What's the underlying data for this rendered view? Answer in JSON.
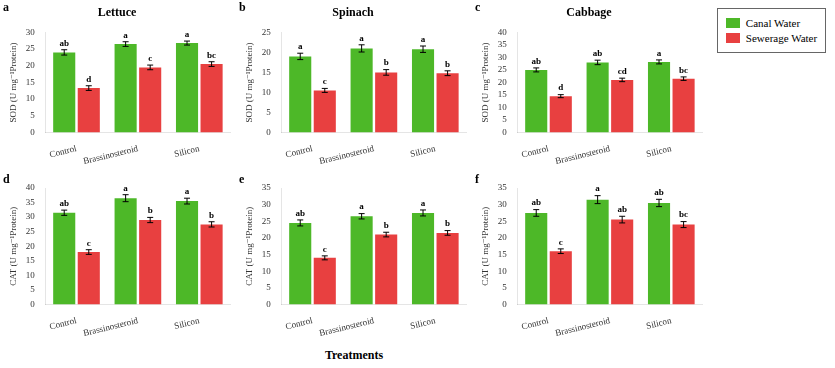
{
  "xlabel": "Treatments",
  "legend": "upper right",
  "chart_data": [
    {
      "type": "bar",
      "title": "Lettuce",
      "panel_label": "a",
      "ylabel": "SOD (U mg⁻¹Protein)",
      "categories": [
        "Control",
        "Brassinosteroid",
        "Silicon"
      ],
      "ylim": [
        0,
        30
      ],
      "yticks": [
        0,
        5,
        10,
        15,
        20,
        25,
        30
      ],
      "grid": false,
      "series": [
        {
          "name": "Canal Water",
          "color": "#4db828",
          "values": [
            24.0,
            26.5,
            26.8
          ],
          "errors": [
            0.8,
            0.7,
            0.6
          ],
          "letter_labels": [
            "ab",
            "a",
            "a"
          ]
        },
        {
          "name": "Sewerage Water",
          "color": "#e84040",
          "values": [
            13.3,
            19.5,
            20.5
          ],
          "errors": [
            0.7,
            0.7,
            0.7
          ],
          "letter_labels": [
            "d",
            "c",
            "bc"
          ]
        }
      ]
    },
    {
      "type": "bar",
      "title": "Spinach",
      "panel_label": "b",
      "ylabel": "SOD (U mg⁻¹Protein)",
      "categories": [
        "Control",
        "Brassinosteroid",
        "Silicon"
      ],
      "ylim": [
        0,
        25
      ],
      "yticks": [
        0,
        5,
        10,
        15,
        20,
        25
      ],
      "grid": false,
      "series": [
        {
          "name": "Canal Water",
          "color": "#4db828",
          "values": [
            19.0,
            21.0,
            20.8
          ],
          "errors": [
            0.8,
            0.9,
            0.8
          ],
          "letter_labels": [
            "a",
            "a",
            "a"
          ]
        },
        {
          "name": "Sewerage Water",
          "color": "#e84040",
          "values": [
            10.5,
            15.0,
            14.8
          ],
          "errors": [
            0.5,
            0.7,
            0.6
          ],
          "letter_labels": [
            "c",
            "b",
            "b"
          ]
        }
      ]
    },
    {
      "type": "bar",
      "title": "Cabbage",
      "panel_label": "c",
      "ylabel": "SOD (U mg⁻¹Protein)",
      "categories": [
        "Control",
        "Brassinosteroid",
        "Silicon"
      ],
      "ylim": [
        0,
        40
      ],
      "yticks": [
        0,
        5,
        10,
        15,
        20,
        25,
        30,
        35,
        40
      ],
      "grid": false,
      "series": [
        {
          "name": "Canal Water",
          "color": "#4db828",
          "values": [
            25.0,
            28.0,
            28.2
          ],
          "errors": [
            0.8,
            0.9,
            0.8
          ],
          "letter_labels": [
            "ab",
            "ab",
            "a"
          ]
        },
        {
          "name": "Sewerage Water",
          "color": "#e84040",
          "values": [
            14.5,
            21.0,
            21.5
          ],
          "errors": [
            0.6,
            0.7,
            0.7
          ],
          "letter_labels": [
            "d",
            "cd",
            "bc"
          ]
        }
      ]
    },
    {
      "type": "bar",
      "panel_label": "d",
      "ylabel": "CAT (U mg⁻¹Protein)",
      "categories": [
        "Control",
        "Brassinosteroid",
        "Silicon"
      ],
      "ylim": [
        0,
        40
      ],
      "yticks": [
        0,
        5,
        10,
        15,
        20,
        25,
        30,
        35,
        40
      ],
      "grid": false,
      "series": [
        {
          "name": "Canal Water",
          "color": "#4db828",
          "values": [
            31.5,
            36.5,
            35.5
          ],
          "errors": [
            0.9,
            1.2,
            1.0
          ],
          "letter_labels": [
            "ab",
            "a",
            "a"
          ]
        },
        {
          "name": "Sewerage Water",
          "color": "#e84040",
          "values": [
            18.0,
            29.0,
            27.5
          ],
          "errors": [
            0.8,
            0.9,
            0.9
          ],
          "letter_labels": [
            "c",
            "b",
            "b"
          ]
        }
      ]
    },
    {
      "type": "bar",
      "panel_label": "e",
      "ylabel": "CAT (U mg⁻¹Protein)",
      "categories": [
        "Control",
        "Brassinosteroid",
        "Silicon"
      ],
      "ylim": [
        0,
        35
      ],
      "yticks": [
        0,
        5,
        10,
        15,
        20,
        25,
        30,
        35
      ],
      "grid": false,
      "series": [
        {
          "name": "Canal Water",
          "color": "#4db828",
          "values": [
            24.5,
            26.5,
            27.5
          ],
          "errors": [
            0.9,
            0.8,
            0.9
          ],
          "letter_labels": [
            "ab",
            "a",
            "a"
          ]
        },
        {
          "name": "Sewerage Water",
          "color": "#e84040",
          "values": [
            14.0,
            21.0,
            21.5
          ],
          "errors": [
            0.6,
            0.7,
            0.7
          ],
          "letter_labels": [
            "c",
            "b",
            "b"
          ]
        }
      ]
    },
    {
      "type": "bar",
      "panel_label": "f",
      "ylabel": "CAT (U mg⁻¹Protein)",
      "categories": [
        "Control",
        "Brassinosteroid",
        "Silicon"
      ],
      "ylim": [
        0,
        35
      ],
      "yticks": [
        0,
        5,
        10,
        15,
        20,
        25,
        30,
        35
      ],
      "grid": false,
      "series": [
        {
          "name": "Canal Water",
          "color": "#4db828",
          "values": [
            27.5,
            31.5,
            30.5
          ],
          "errors": [
            1.0,
            1.2,
            1.1
          ],
          "letter_labels": [
            "ab",
            "a",
            "ab"
          ]
        },
        {
          "name": "Sewerage Water",
          "color": "#e84040",
          "values": [
            16.0,
            25.5,
            24.0
          ],
          "errors": [
            0.7,
            1.0,
            0.9
          ],
          "letter_labels": [
            "c",
            "ab",
            "bc"
          ]
        }
      ]
    }
  ]
}
